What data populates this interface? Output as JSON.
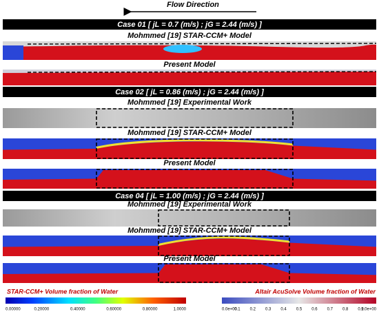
{
  "header": {
    "flow_direction": "Flow Direction"
  },
  "cases": [
    {
      "title": "Case 01 [ jL = 0.7 (m/s) ; jG = 2.44 (m/s) ]",
      "panels": [
        {
          "label": "Mohmmed [19] STAR-CCM+ Model"
        },
        {
          "label": "Present Model"
        }
      ]
    },
    {
      "title": "Case 02 [ jL = 0.86 (m/s) ; jG = 2.44 (m/s) ]",
      "panels": [
        {
          "label": "Mohmmed [19] Experimental Work"
        },
        {
          "label": "Mohmmed [19] STAR-CCM+ Model"
        },
        {
          "label": "Present Model"
        }
      ]
    },
    {
      "title": "Case 04 [ jL = 1.00 (m/s) ; jG = 2.44 (m/s) ]",
      "panels": [
        {
          "label": "Mohmmed [19] Experimental Work"
        },
        {
          "label": "Mohmmed [19] STAR-CCM+ Model"
        },
        {
          "label": "Present Model"
        }
      ]
    }
  ],
  "legends": [
    {
      "title": "STAR-CCM+ Volume fraction of Water",
      "ticks": [
        "0.00000",
        "0.20000",
        "0.40000",
        "0.60000",
        "0.80000",
        "1.0000"
      ]
    },
    {
      "title": "Altair AcuSolve Volume fraction of Water",
      "ticks": [
        "0.0e+00",
        "0.1",
        "0.2",
        "0.3",
        "0.4",
        "0.5",
        "0.6",
        "0.7",
        "0.8",
        "0.9",
        "1.0e+00"
      ]
    }
  ]
}
